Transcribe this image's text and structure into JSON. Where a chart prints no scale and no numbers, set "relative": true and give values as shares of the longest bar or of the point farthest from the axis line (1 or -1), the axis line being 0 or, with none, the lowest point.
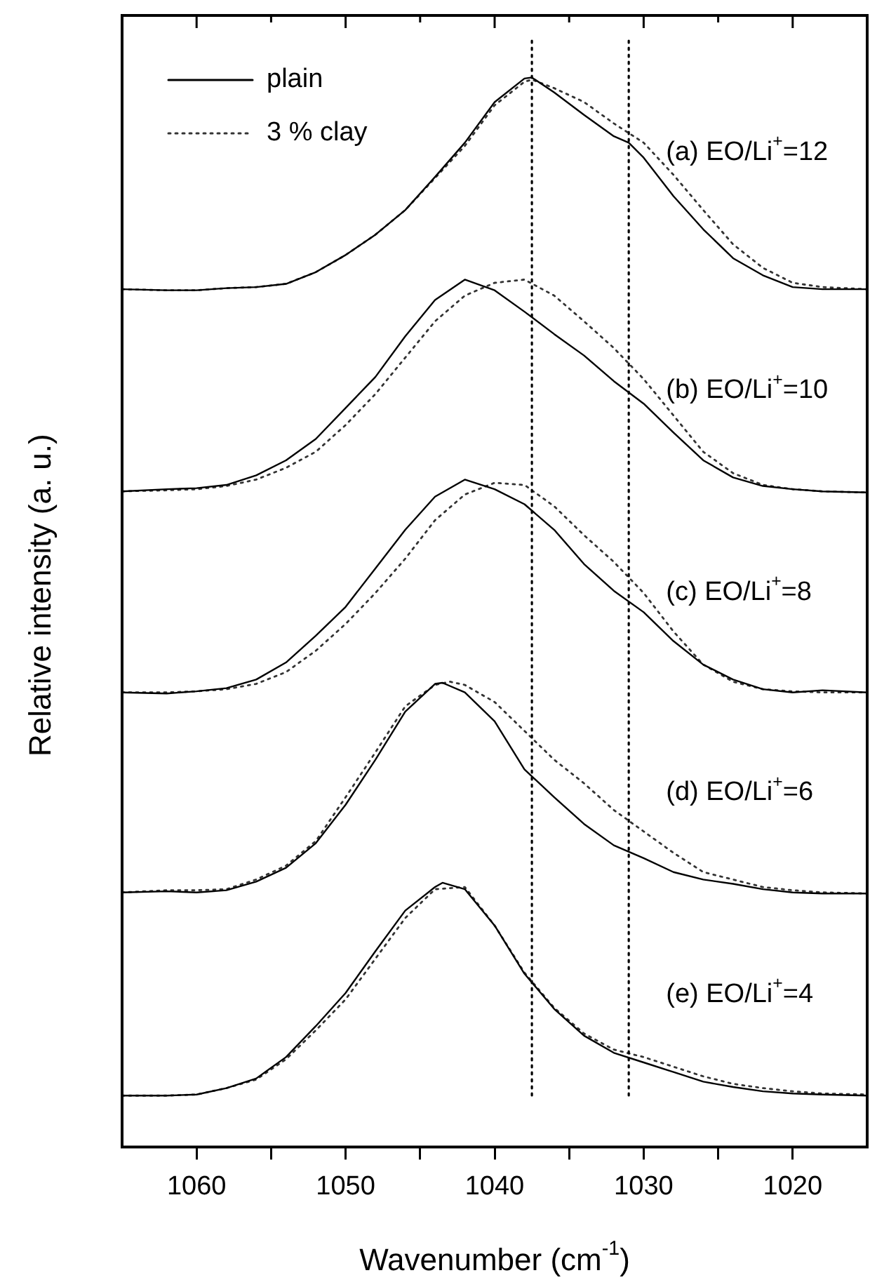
{
  "chart_data": {
    "type": "line",
    "relative": true,
    "xlabel": "Wavenumber (cm$^{-1}$)",
    "ylabel": "Relative intensity (a. u.)",
    "x": [
      1065,
      1062,
      1060,
      1058,
      1056,
      1054,
      1052,
      1050,
      1048,
      1046,
      1044,
      1042,
      1040,
      1038,
      1036,
      1034,
      1032,
      1030,
      1028,
      1026,
      1024,
      1022,
      1020,
      1018,
      1015
    ],
    "xlim": [
      1065,
      1015
    ],
    "xticks": [
      1060,
      {
        "value": 1055,
        "label": null
      },
      1050,
      {
        "value": 1045,
        "label": null
      },
      1040,
      {
        "value": 1035,
        "label": null
      },
      1030,
      {
        "value": 1025,
        "label": null
      },
      1020
    ],
    "legend": "top left",
    "marker": "none",
    "series": [
      {
        "name": "plain",
        "color": "#000000",
        "line_style": "solid",
        "x": [
          1065,
          1062,
          1060,
          1058,
          1056,
          1054,
          1052,
          1050,
          1048,
          1046,
          1044,
          1042,
          1040,
          1038,
          1037.5,
          1036,
          1034,
          1032,
          1031,
          1030,
          1028,
          1026,
          1024,
          1022,
          1020,
          1018,
          1015
        ],
        "values": [
          0.802,
          0.801,
          0.801,
          0.803,
          0.804,
          0.807,
          0.818,
          0.834,
          0.853,
          0.876,
          0.907,
          0.939,
          0.977,
          0.999,
          1.0,
          0.986,
          0.965,
          0.945,
          0.939,
          0.925,
          0.889,
          0.858,
          0.831,
          0.815,
          0.804,
          0.802,
          0.802
        ]
      },
      {
        "name": "3 % clay",
        "color": "#333333",
        "line_style": "dotted",
        "x": [
          1065,
          1062,
          1060,
          1058,
          1056,
          1054,
          1052,
          1050,
          1048,
          1046,
          1044,
          1042,
          1040,
          1038,
          1037.5,
          1036,
          1034,
          1032,
          1030,
          1028,
          1026,
          1024,
          1022,
          1020,
          1018,
          1015
        ],
        "values": [
          0.802,
          0.801,
          0.801,
          0.803,
          0.804,
          0.807,
          0.818,
          0.834,
          0.853,
          0.876,
          0.906,
          0.936,
          0.974,
          0.996,
          0.998,
          0.99,
          0.977,
          0.957,
          0.939,
          0.909,
          0.876,
          0.844,
          0.822,
          0.808,
          0.804,
          0.802
        ]
      },
      {
        "color": "#000000",
        "line_style": "solid",
        "values": [
          0.613,
          0.615,
          0.616,
          0.619,
          0.628,
          0.642,
          0.662,
          0.691,
          0.72,
          0.758,
          0.792,
          0.811,
          0.801,
          0.781,
          0.76,
          0.74,
          0.716,
          0.695,
          0.668,
          0.642,
          0.626,
          0.618,
          0.615,
          0.613,
          0.612
        ]
      },
      {
        "color": "#333333",
        "line_style": "dotted",
        "values": [
          0.613,
          0.614,
          0.615,
          0.618,
          0.624,
          0.635,
          0.65,
          0.675,
          0.704,
          0.738,
          0.772,
          0.796,
          0.808,
          0.811,
          0.796,
          0.772,
          0.747,
          0.718,
          0.684,
          0.65,
          0.63,
          0.619,
          0.615,
          0.613,
          0.612
        ]
      },
      {
        "color": "#000000",
        "line_style": "solid",
        "values": [
          0.425,
          0.424,
          0.426,
          0.429,
          0.437,
          0.453,
          0.478,
          0.505,
          0.541,
          0.577,
          0.608,
          0.624,
          0.615,
          0.601,
          0.577,
          0.545,
          0.52,
          0.5,
          0.473,
          0.451,
          0.437,
          0.428,
          0.425,
          0.427,
          0.425
        ]
      },
      {
        "color": "#333333",
        "line_style": "dotted",
        "values": [
          0.425,
          0.425,
          0.426,
          0.428,
          0.433,
          0.444,
          0.464,
          0.489,
          0.518,
          0.55,
          0.586,
          0.61,
          0.621,
          0.619,
          0.599,
          0.572,
          0.547,
          0.518,
          0.482,
          0.451,
          0.435,
          0.428,
          0.426,
          0.425,
          0.425
        ]
      },
      {
        "color": "#000000",
        "line_style": "solid",
        "x": [
          1065,
          1062,
          1060,
          1058,
          1056,
          1054,
          1052,
          1050,
          1048,
          1046,
          1044,
          1043.5,
          1042,
          1040,
          1038,
          1036,
          1034,
          1032,
          1030,
          1028,
          1026,
          1024,
          1022,
          1020,
          1018,
          1015
        ],
        "values": [
          0.238,
          0.239,
          0.238,
          0.24,
          0.248,
          0.261,
          0.284,
          0.32,
          0.362,
          0.407,
          0.433,
          0.434,
          0.425,
          0.398,
          0.353,
          0.327,
          0.302,
          0.282,
          0.27,
          0.257,
          0.25,
          0.246,
          0.241,
          0.238,
          0.237,
          0.237
        ]
      },
      {
        "color": "#333333",
        "line_style": "dotted",
        "x": [
          1065,
          1062,
          1060,
          1058,
          1056,
          1054,
          1052,
          1050,
          1048,
          1046,
          1044,
          1043,
          1042,
          1040,
          1038,
          1036,
          1034,
          1032,
          1030,
          1028,
          1026,
          1024,
          1022,
          1020,
          1018,
          1015
        ],
        "values": [
          0.238,
          0.24,
          0.24,
          0.241,
          0.25,
          0.263,
          0.286,
          0.327,
          0.369,
          0.412,
          0.432,
          0.435,
          0.432,
          0.416,
          0.389,
          0.362,
          0.34,
          0.315,
          0.295,
          0.275,
          0.257,
          0.25,
          0.243,
          0.24,
          0.238,
          0.237
        ]
      },
      {
        "color": "#000000",
        "line_style": "solid",
        "x": [
          1065,
          1062,
          1060,
          1058,
          1056,
          1054,
          1052,
          1050,
          1048,
          1046,
          1044,
          1043.5,
          1042,
          1040,
          1038,
          1036,
          1034,
          1032,
          1030,
          1028,
          1026,
          1024,
          1022,
          1020,
          1018,
          1015
        ],
        "values": [
          0.048,
          0.048,
          0.049,
          0.055,
          0.064,
          0.084,
          0.113,
          0.144,
          0.183,
          0.221,
          0.243,
          0.247,
          0.241,
          0.207,
          0.162,
          0.129,
          0.104,
          0.088,
          0.079,
          0.07,
          0.061,
          0.056,
          0.052,
          0.05,
          0.049,
          0.048
        ]
      },
      {
        "color": "#333333",
        "line_style": "dotted",
        "values": [
          0.048,
          0.048,
          0.049,
          0.055,
          0.063,
          0.082,
          0.109,
          0.138,
          0.176,
          0.214,
          0.241,
          0.243,
          0.207,
          0.163,
          0.13,
          0.106,
          0.091,
          0.084,
          0.075,
          0.066,
          0.059,
          0.055,
          0.052,
          0.05,
          0.049
        ]
      }
    ],
    "ref_lines": [
      {
        "axis": "x",
        "value": 1037.5,
        "color": "#000000",
        "line_style": "dotted"
      },
      {
        "axis": "x",
        "value": 1031,
        "color": "#000000",
        "line_style": "dotted"
      }
    ],
    "annotations": [
      "(a) EO/Li$^{+}$=12",
      "(b) EO/Li$^{+}$=10",
      "(c) EO/Li$^{+}$=8",
      "(d) EO/Li$^{+}$=6",
      "(e) EO/Li$^{+}$=4"
    ]
  }
}
